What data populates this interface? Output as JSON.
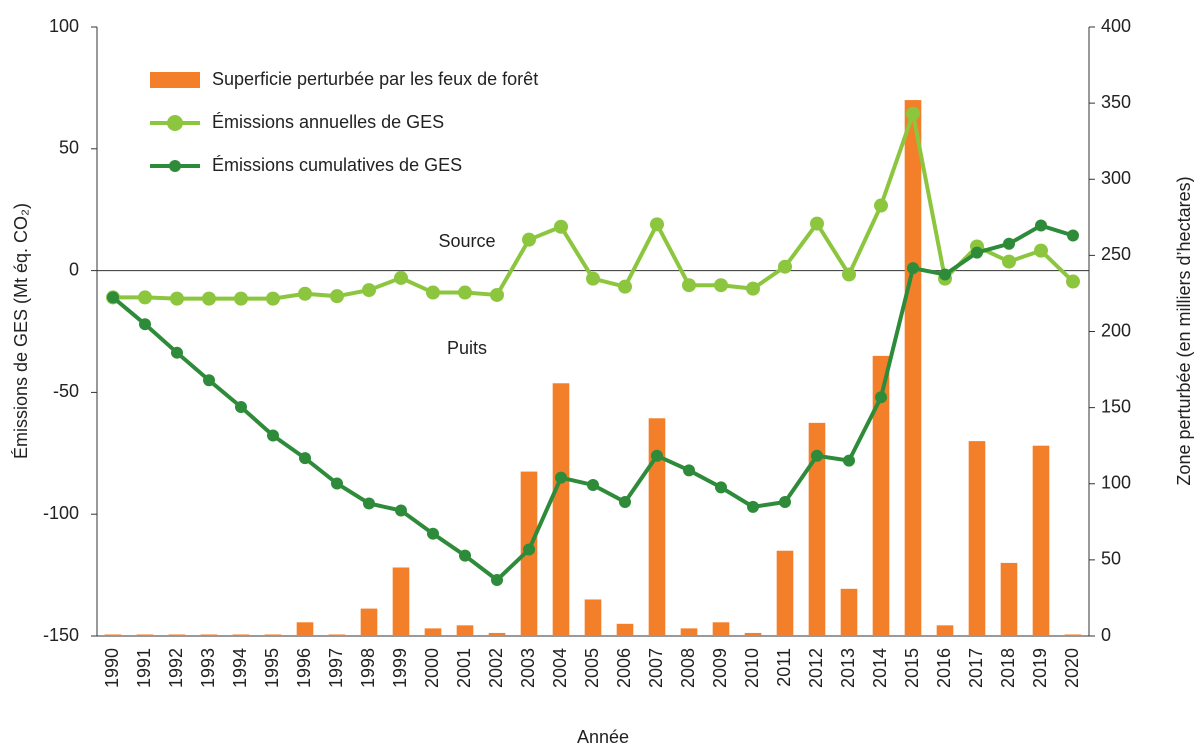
{
  "chart_data": {
    "type": "bar-line",
    "x_label": "Année",
    "y_label": "Émissions de GES (Mt éq. CO₂)",
    "y2_label": "Zone perturbée (en milliers d’hectares)",
    "annotations": [
      "Source",
      "Puits"
    ],
    "categories": [
      "1990",
      "1991",
      "1992",
      "1993",
      "1994",
      "1995",
      "1996",
      "1997",
      "1998",
      "1999",
      "2000",
      "2001",
      "2002",
      "2003",
      "2004",
      "2005",
      "2006",
      "2007",
      "2008",
      "2009",
      "2010",
      "2011",
      "2012",
      "2013",
      "2014",
      "2015",
      "2016",
      "2017",
      "2018",
      "2019",
      "2020"
    ],
    "series": [
      {
        "name": "Superficie perturbée par les feux de forêt",
        "type": "bar",
        "axis": "y2",
        "color": "#f47f2a",
        "values": [
          1,
          1,
          1,
          1,
          1,
          1,
          9,
          1,
          18,
          45,
          5,
          7,
          2,
          108,
          166,
          24,
          8,
          143,
          5,
          9,
          2,
          56,
          140,
          31,
          184,
          352,
          7,
          128,
          48,
          125,
          1
        ]
      },
      {
        "name": "Émissions annuelles de GES",
        "type": "line",
        "color": "#8cc63f",
        "values": [
          -11,
          -11,
          -11.5,
          -11.5,
          -11.5,
          -11.5,
          -9.5,
          -10.5,
          -8,
          -3,
          -9,
          -9,
          -10,
          12.7,
          18,
          -3.3,
          -6.6,
          19,
          -6,
          -6,
          -7.4,
          1.6,
          19.3,
          -1.6,
          26.7,
          64.4,
          -3.3,
          9.9,
          3.7,
          8.2,
          -4.5
        ]
      },
      {
        "name": "Émissions cumulatives de GES",
        "type": "line",
        "color": "#2e8b3a",
        "values": [
          -11,
          -22,
          -33.7,
          -45,
          -56,
          -67.7,
          -77,
          -87.4,
          -95.6,
          -98.5,
          -108,
          -117,
          -127,
          -114.5,
          -85,
          -88,
          -95,
          -76,
          -82,
          -89,
          -97,
          -95,
          -76,
          -78,
          -52,
          1,
          -1.6,
          7.4,
          11,
          18.5,
          14.4
        ]
      }
    ],
    "ylim": [
      -150,
      100
    ],
    "yticks": [
      -150,
      -100,
      -50,
      0,
      50,
      100
    ],
    "y2lim": [
      0,
      400
    ],
    "y2ticks": [
      0,
      50,
      100,
      150,
      200,
      250,
      300,
      350,
      400
    ]
  }
}
